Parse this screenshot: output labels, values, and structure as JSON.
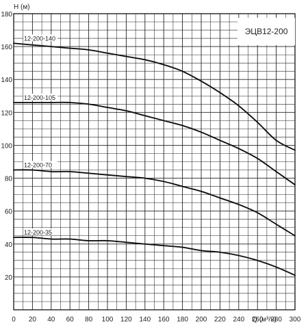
{
  "chart_data": {
    "type": "line",
    "title": "ЭЦВ12-200",
    "ylabel": "H (м)",
    "xlabel": "Q (м³/ч)",
    "xlim": [
      0,
      300
    ],
    "ylim": [
      0,
      180
    ],
    "x_ticks": [
      0,
      20,
      40,
      60,
      80,
      100,
      120,
      140,
      160,
      180,
      200,
      220,
      240,
      260,
      280,
      300
    ],
    "y_ticks": [
      20,
      40,
      60,
      80,
      100,
      120,
      140,
      160,
      180
    ],
    "minor_grid_x_step": 10,
    "minor_grid_y_step": 5,
    "grid": true,
    "series": [
      {
        "name": "12-200-140",
        "x": [
          0,
          20,
          40,
          60,
          80,
          100,
          120,
          140,
          160,
          180,
          200,
          220,
          240,
          260,
          280,
          300
        ],
        "y": [
          162,
          161,
          160,
          159,
          158,
          156,
          154,
          152,
          149,
          145,
          139,
          132,
          124,
          114,
          103,
          97
        ]
      },
      {
        "name": "12-200-105",
        "x": [
          0,
          20,
          40,
          60,
          80,
          100,
          120,
          140,
          160,
          180,
          200,
          220,
          240,
          260,
          280,
          300
        ],
        "y": [
          126,
          126,
          126,
          126,
          125,
          123,
          121,
          118,
          115,
          112,
          108,
          103,
          98,
          92,
          84,
          76
        ]
      },
      {
        "name": "12-200-70",
        "x": [
          0,
          20,
          40,
          60,
          80,
          100,
          120,
          140,
          160,
          180,
          200,
          220,
          240,
          260,
          280,
          300
        ],
        "y": [
          85,
          85,
          84,
          84,
          83,
          82,
          81,
          80,
          78,
          75,
          72,
          68,
          64,
          59,
          52,
          45
        ]
      },
      {
        "name": "12-200-35",
        "x": [
          0,
          20,
          40,
          60,
          80,
          100,
          120,
          140,
          160,
          180,
          200,
          220,
          240,
          260,
          280,
          300
        ],
        "y": [
          44,
          44,
          43,
          43,
          42,
          42,
          41,
          40,
          39,
          38,
          36,
          35,
          33,
          30,
          26,
          21
        ]
      }
    ]
  }
}
